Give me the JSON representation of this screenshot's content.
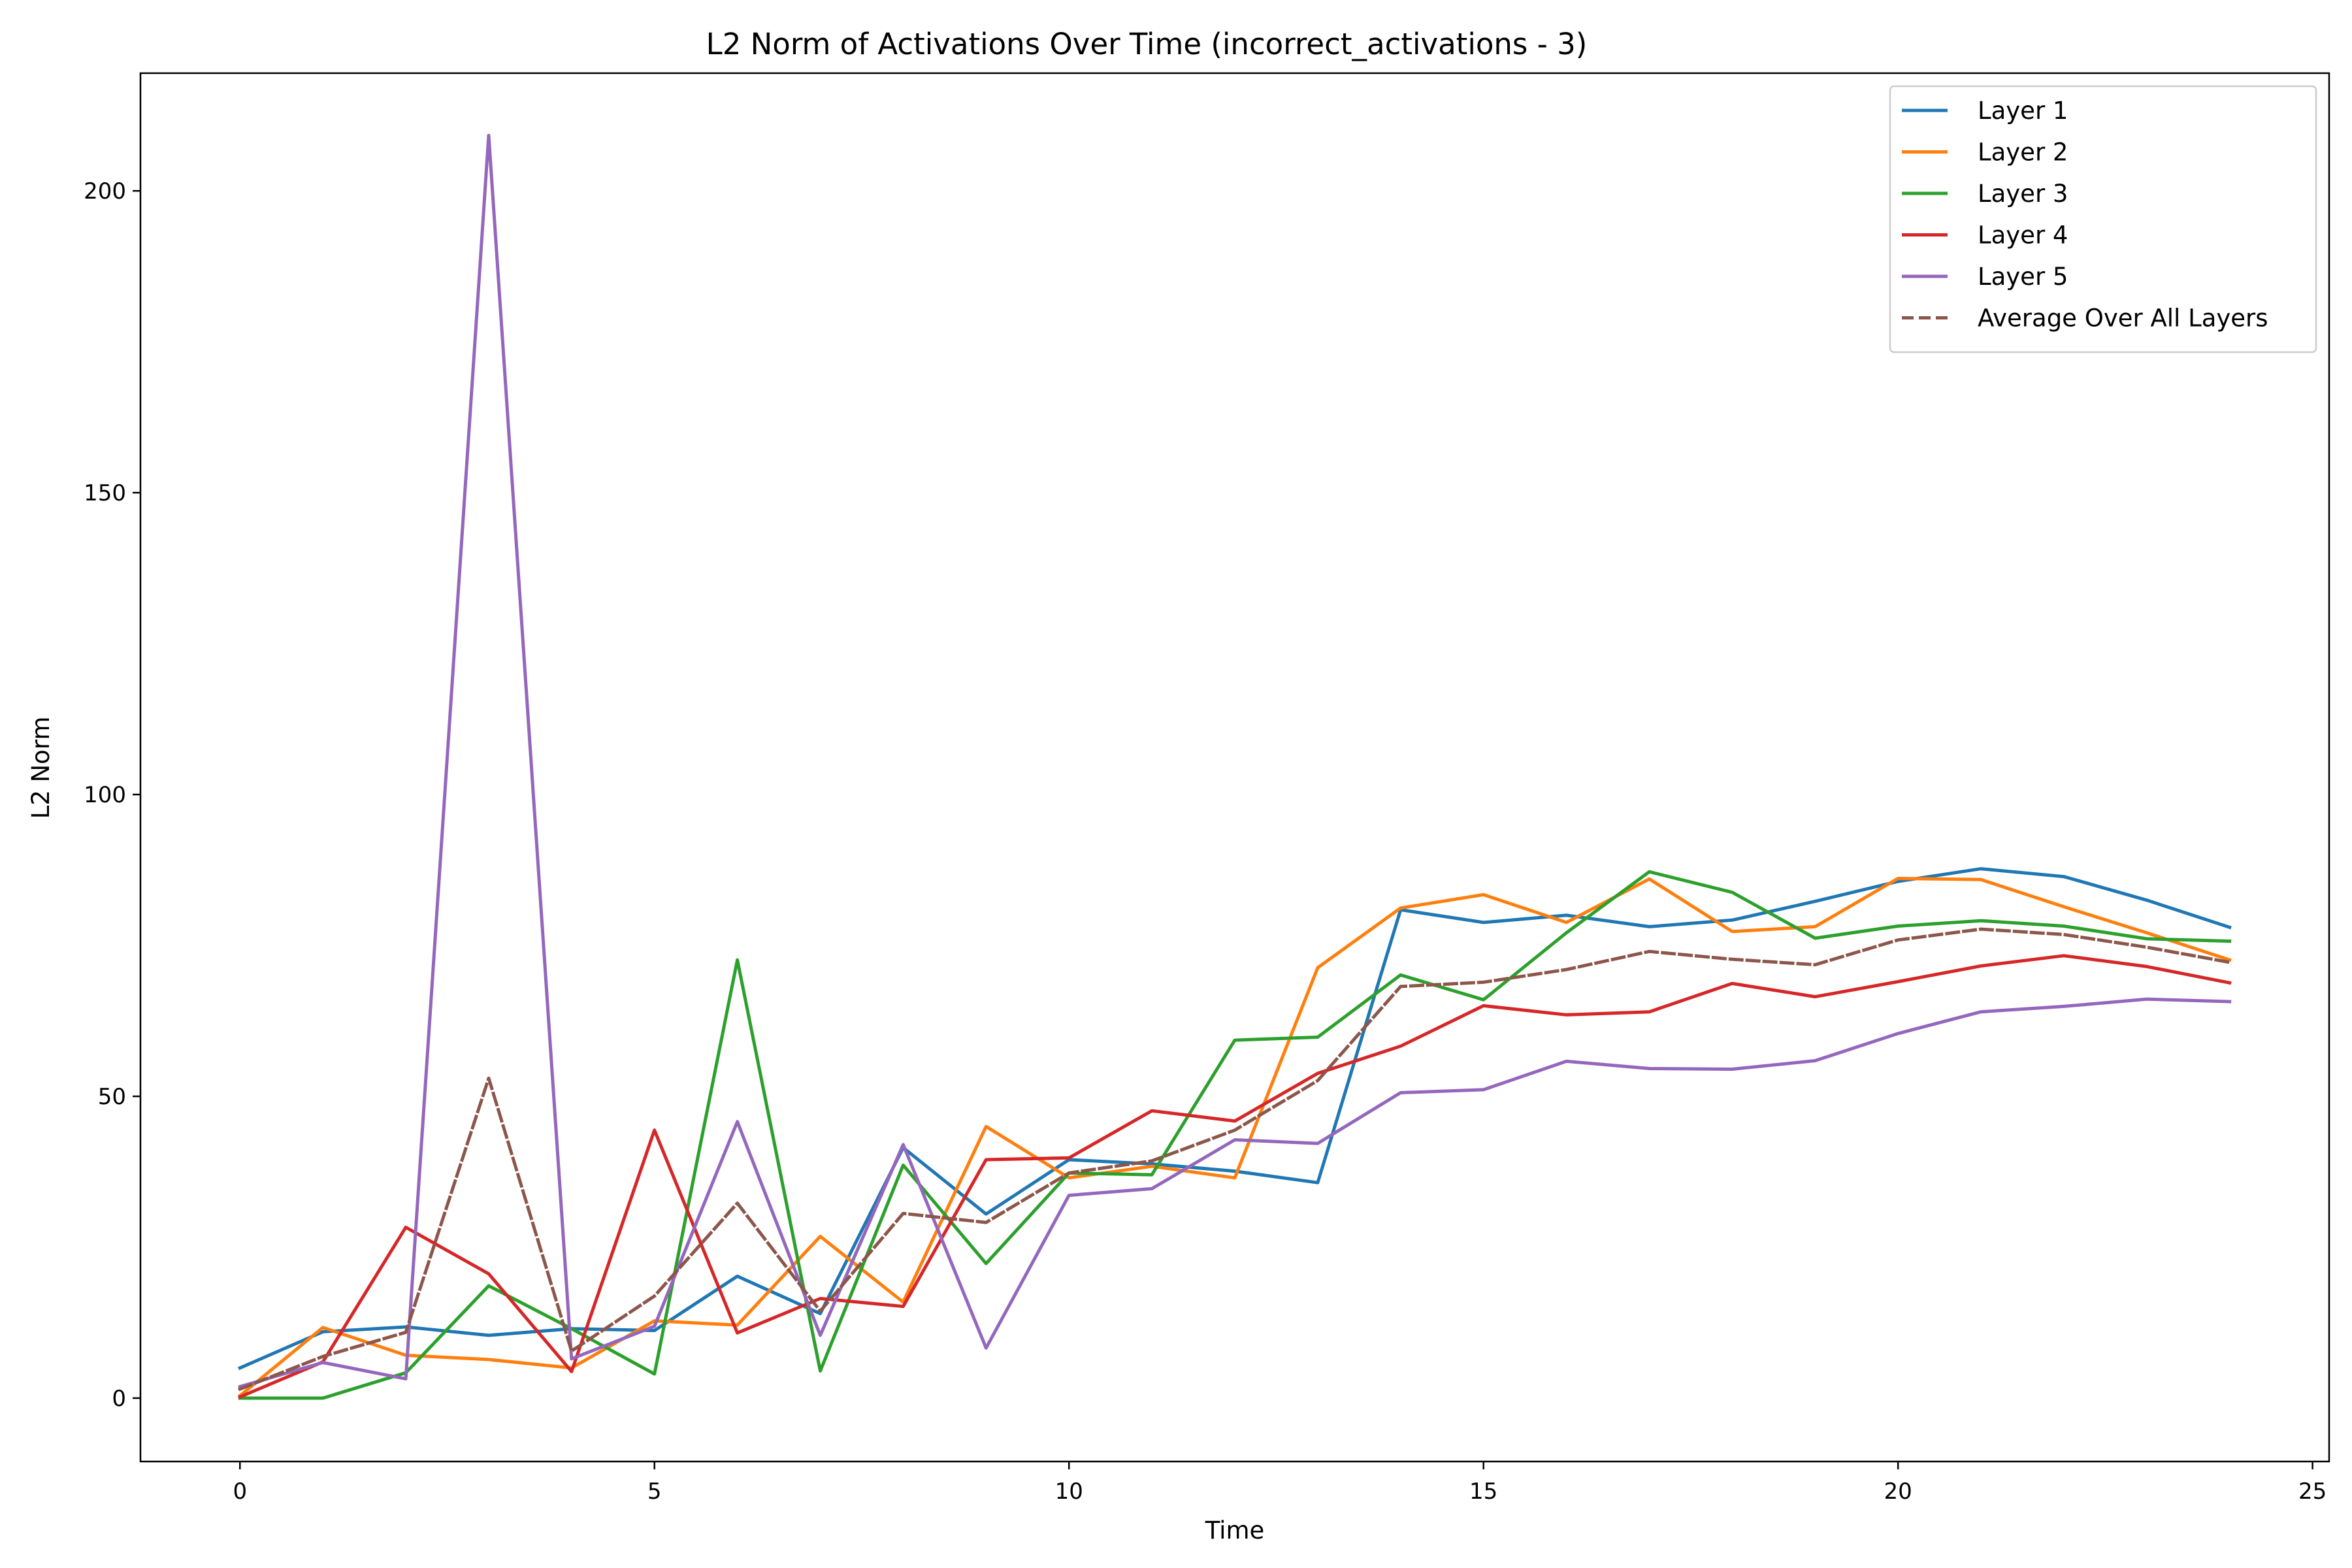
{
  "chart_data": {
    "type": "line",
    "title": "L2 Norm of Activations Over Time (incorrect_activations - 3)",
    "xlabel": "Time",
    "ylabel": "L2 Norm",
    "xlim": [
      -1.2,
      25.2
    ],
    "ylim": [
      -10.5,
      219.5
    ],
    "xticks": [
      0,
      5,
      10,
      15,
      20,
      25
    ],
    "yticks": [
      0,
      50,
      100,
      150,
      200
    ],
    "grid": false,
    "legend_position": "top-right",
    "x": [
      0,
      1,
      2,
      3,
      4,
      5,
      6,
      7,
      8,
      9,
      10,
      11,
      12,
      13,
      14,
      15,
      16,
      17,
      18,
      19,
      20,
      21,
      22,
      23,
      24
    ],
    "series": [
      {
        "name": "Layer 1",
        "color": "#1f77b4",
        "dash": "solid",
        "values": [
          5.0,
          11.0,
          11.8,
          10.4,
          11.5,
          11.2,
          20.2,
          14.0,
          41.5,
          30.5,
          39.5,
          38.8,
          37.6,
          35.7,
          80.9,
          78.8,
          80.0,
          78.1,
          79.2,
          82.3,
          85.6,
          87.7,
          86.4,
          82.5,
          78.0
        ]
      },
      {
        "name": "Layer 2",
        "color": "#ff7f0e",
        "dash": "solid",
        "values": [
          0.4,
          11.7,
          7.1,
          6.4,
          5.0,
          12.8,
          12.1,
          26.8,
          15.9,
          45.0,
          36.5,
          38.4,
          36.5,
          71.3,
          81.2,
          83.4,
          78.8,
          86.0,
          77.3,
          78.1,
          86.1,
          85.9,
          81.4,
          77.1,
          72.6
        ]
      },
      {
        "name": "Layer 3",
        "color": "#2ca02c",
        "dash": "solid",
        "values": [
          0.0,
          0.0,
          4.2,
          18.6,
          11.5,
          4.0,
          72.6,
          4.5,
          38.6,
          22.3,
          37.3,
          37.0,
          59.3,
          59.8,
          70.1,
          66.0,
          77.1,
          87.2,
          83.8,
          76.2,
          78.2,
          79.1,
          78.2,
          76.1,
          75.7
        ]
      },
      {
        "name": "Layer 4",
        "color": "#d62728",
        "dash": "solid",
        "values": [
          0.2,
          6.0,
          28.3,
          20.6,
          4.4,
          44.4,
          10.8,
          16.5,
          15.2,
          39.5,
          39.8,
          47.6,
          45.9,
          53.8,
          58.3,
          65.0,
          63.5,
          64.0,
          68.7,
          66.5,
          69.0,
          71.6,
          73.3,
          71.5,
          68.8
        ]
      },
      {
        "name": "Layer 5",
        "color": "#9467bd",
        "dash": "solid",
        "values": [
          1.9,
          5.9,
          3.2,
          209.2,
          6.5,
          11.9,
          45.8,
          10.4,
          42.0,
          8.3,
          33.6,
          34.7,
          42.8,
          42.2,
          50.6,
          51.1,
          55.8,
          54.6,
          54.5,
          55.9,
          60.4,
          64.0,
          64.9,
          66.1,
          65.7
        ]
      },
      {
        "name": "Average Over All Layers",
        "color": "#8c564b",
        "dash": "dashed",
        "values": [
          1.5,
          6.9,
          10.9,
          53.0,
          7.8,
          16.9,
          32.3,
          14.4,
          30.6,
          29.1,
          37.3,
          39.3,
          44.4,
          52.6,
          68.2,
          68.9,
          71.0,
          74.0,
          72.7,
          71.8,
          75.9,
          77.7,
          76.8,
          74.7,
          72.2
        ]
      }
    ]
  }
}
